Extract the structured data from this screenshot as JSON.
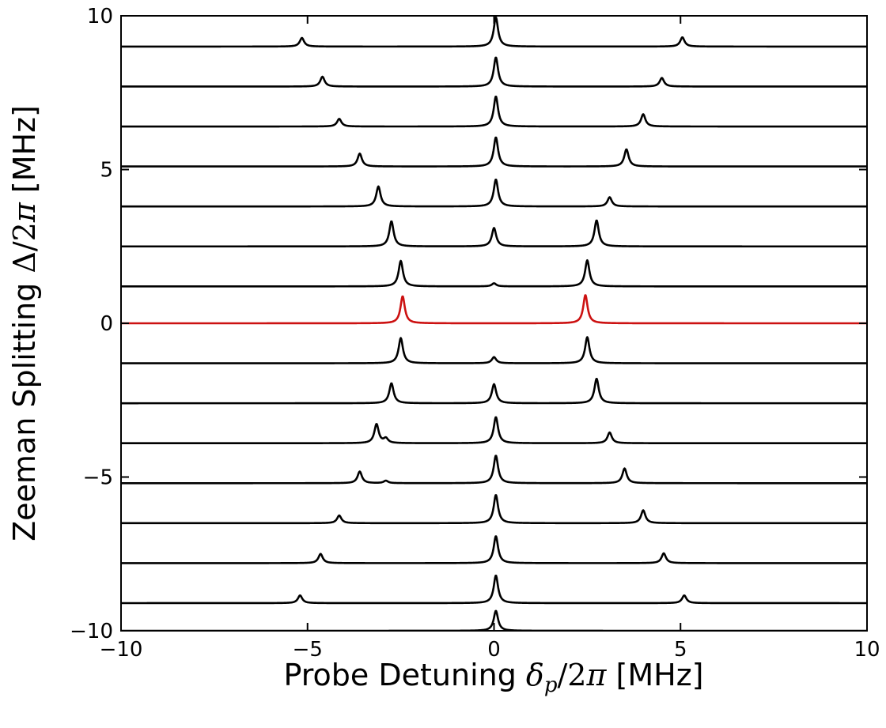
{
  "chart_data": {
    "type": "line",
    "title": "",
    "xlabel": {
      "prefix": "Probe Detuning ",
      "symbol": "δ",
      "subscript": "p",
      "divisor": "/2",
      "pi": "π",
      "unit": " [MHz]"
    },
    "ylabel": {
      "prefix": "Zeeman Splitting ",
      "symbol": "Δ",
      "divisor": "/2",
      "pi": "π",
      "unit": " [MHz]"
    },
    "xlim": [
      -10,
      10
    ],
    "ylim": [
      -10,
      10
    ],
    "xticks": [
      -10,
      -5,
      0,
      5,
      10
    ],
    "xtick_labels": [
      "−10",
      "−5",
      "0",
      "5",
      "10"
    ],
    "yticks": [
      -10,
      -5,
      0,
      5,
      10
    ],
    "ytick_labels": [
      "−10",
      "−5",
      "0",
      "5",
      "10"
    ],
    "grid": false,
    "legend": "none",
    "colors": {
      "default": "#000000",
      "highlight": "#cc1111"
    },
    "peak_width_mhz": 0.07,
    "series": [
      {
        "baseline": 9.0,
        "color": "#000000",
        "peaks": [
          {
            "x": -5.15,
            "h": 0.28
          },
          {
            "x": 0.05,
            "h": 0.95
          },
          {
            "x": 5.05,
            "h": 0.3
          }
        ]
      },
      {
        "baseline": 7.7,
        "color": "#000000",
        "peaks": [
          {
            "x": -4.6,
            "h": 0.32
          },
          {
            "x": 0.05,
            "h": 0.95
          },
          {
            "x": 4.5,
            "h": 0.28
          }
        ]
      },
      {
        "baseline": 6.4,
        "color": "#000000",
        "peaks": [
          {
            "x": -4.15,
            "h": 0.25
          },
          {
            "x": 0.05,
            "h": 0.98
          },
          {
            "x": 4.0,
            "h": 0.4
          }
        ]
      },
      {
        "baseline": 5.1,
        "color": "#000000",
        "peaks": [
          {
            "x": -3.6,
            "h": 0.42
          },
          {
            "x": 0.05,
            "h": 0.95
          },
          {
            "x": 3.55,
            "h": 0.56
          }
        ]
      },
      {
        "baseline": 3.8,
        "color": "#000000",
        "peaks": [
          {
            "x": -3.1,
            "h": 0.65
          },
          {
            "x": 0.05,
            "h": 0.88
          },
          {
            "x": 3.1,
            "h": 0.3
          }
        ]
      },
      {
        "baseline": 2.5,
        "color": "#000000",
        "peaks": [
          {
            "x": -2.75,
            "h": 0.82
          },
          {
            "x": 0.0,
            "h": 0.6
          },
          {
            "x": 2.75,
            "h": 0.85
          }
        ]
      },
      {
        "baseline": 1.2,
        "color": "#000000",
        "peaks": [
          {
            "x": -2.5,
            "h": 0.83
          },
          {
            "x": 0.0,
            "h": 0.1
          },
          {
            "x": 2.5,
            "h": 0.85
          }
        ]
      },
      {
        "baseline": 0.0,
        "color": "#cc1111",
        "peaks": [
          {
            "x": -2.45,
            "h": 0.88
          },
          {
            "x": 2.45,
            "h": 0.92
          }
        ]
      },
      {
        "baseline": -1.3,
        "color": "#000000",
        "peaks": [
          {
            "x": -2.5,
            "h": 0.82
          },
          {
            "x": 0.0,
            "h": 0.2
          },
          {
            "x": 2.5,
            "h": 0.85
          }
        ]
      },
      {
        "baseline": -2.6,
        "color": "#000000",
        "peaks": [
          {
            "x": -2.75,
            "h": 0.65
          },
          {
            "x": 0.0,
            "h": 0.62
          },
          {
            "x": 2.75,
            "h": 0.8
          }
        ]
      },
      {
        "baseline": -3.9,
        "color": "#000000",
        "peaks": [
          {
            "x": -3.15,
            "h": 0.62
          },
          {
            "x": -2.9,
            "h": 0.15
          },
          {
            "x": 0.05,
            "h": 0.85
          },
          {
            "x": 3.1,
            "h": 0.35
          }
        ]
      },
      {
        "baseline": -5.2,
        "color": "#000000",
        "peaks": [
          {
            "x": -3.6,
            "h": 0.38
          },
          {
            "x": -2.9,
            "h": 0.08
          },
          {
            "x": 0.05,
            "h": 0.9
          },
          {
            "x": 3.5,
            "h": 0.48
          }
        ]
      },
      {
        "baseline": -6.5,
        "color": "#000000",
        "peaks": [
          {
            "x": -4.15,
            "h": 0.25
          },
          {
            "x": 0.05,
            "h": 0.92
          },
          {
            "x": 4.0,
            "h": 0.42
          }
        ]
      },
      {
        "baseline": -7.8,
        "color": "#000000",
        "peaks": [
          {
            "x": -4.65,
            "h": 0.3
          },
          {
            "x": 0.05,
            "h": 0.88
          },
          {
            "x": 4.55,
            "h": 0.32
          }
        ]
      },
      {
        "baseline": -9.1,
        "color": "#000000",
        "peaks": [
          {
            "x": -5.2,
            "h": 0.25
          },
          {
            "x": 0.05,
            "h": 0.9
          },
          {
            "x": 5.1,
            "h": 0.25
          }
        ]
      },
      {
        "baseline": -10.0,
        "color": "#000000",
        "peaks": [
          {
            "x": 0.05,
            "h": 0.65
          }
        ]
      }
    ]
  }
}
